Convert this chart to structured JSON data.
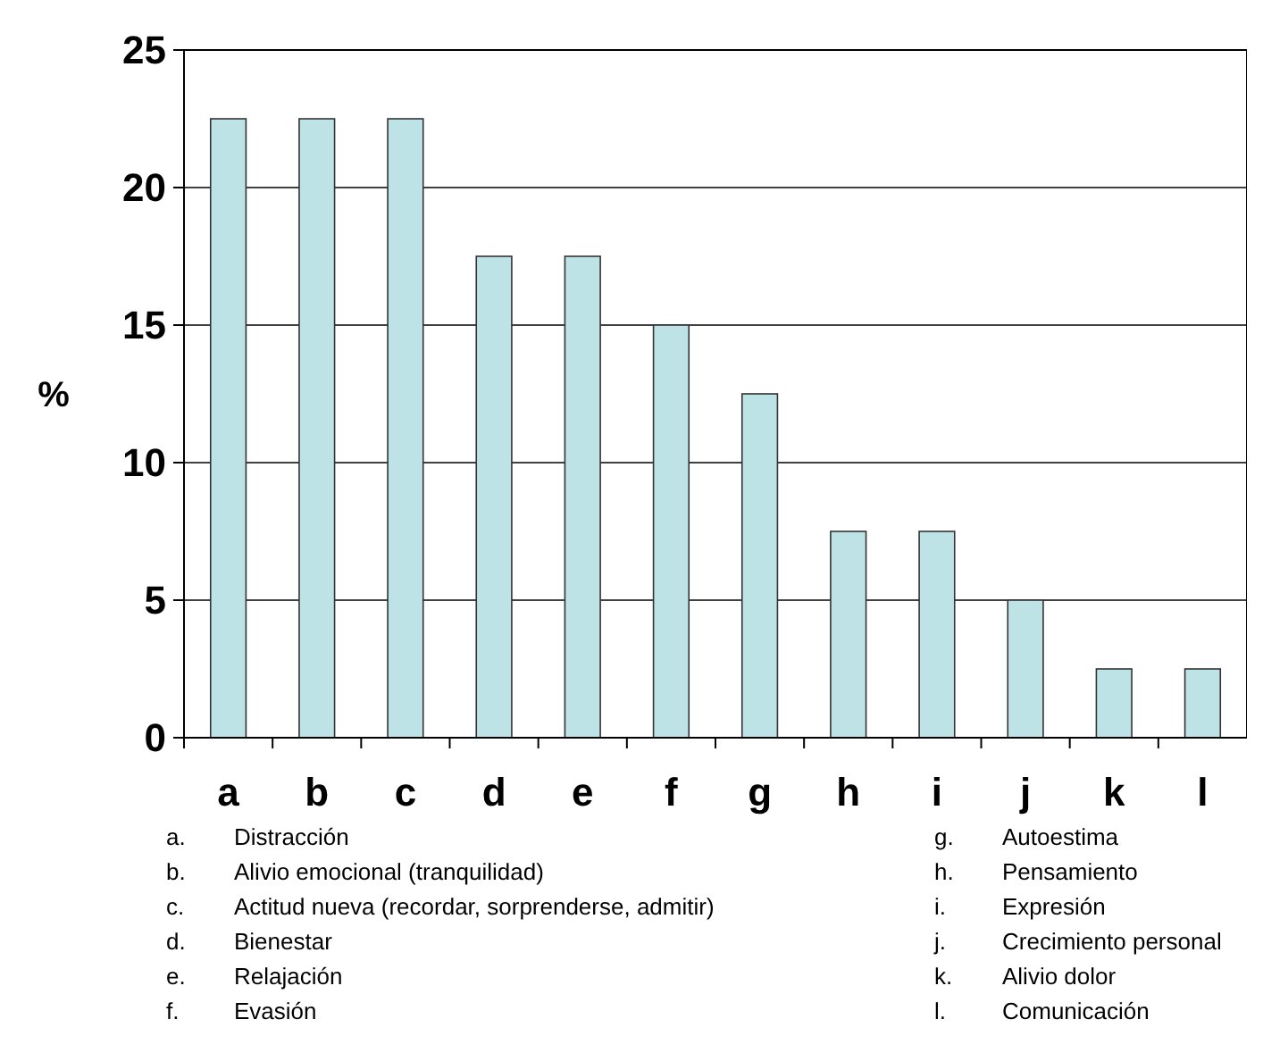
{
  "chart_data": {
    "type": "bar",
    "ylabel": "%",
    "categories": [
      "a",
      "b",
      "c",
      "d",
      "e",
      "f",
      "g",
      "h",
      "i",
      "j",
      "k",
      "l"
    ],
    "values": [
      22.5,
      22.5,
      22.5,
      17.5,
      17.5,
      15,
      12.5,
      7.5,
      7.5,
      5,
      2.5,
      2.5
    ],
    "color": "#bde3e6",
    "ylim": [
      0,
      25
    ],
    "yticks": [
      0,
      5,
      10,
      15,
      20,
      25
    ],
    "grid": "y",
    "annotations": [
      "a. Distracción",
      "b. Alivio emocional (tranquilidad)",
      "c. Actitud nueva (recordar, sorprenderse, admitir)",
      "d. Bienestar",
      "e. Relajación",
      "f. Evasión",
      "g. Autoestima",
      "h. Pensamiento",
      "i. Expresión",
      "j. Crecimiento personal",
      "k. Alivio dolor",
      "l. Comunicación"
    ]
  }
}
